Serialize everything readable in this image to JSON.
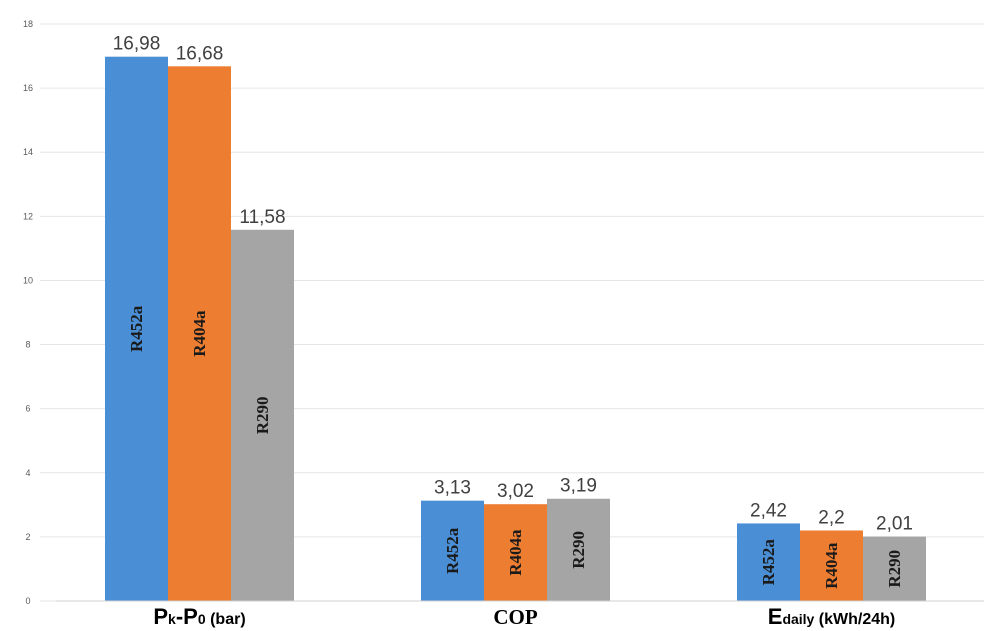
{
  "chart_data": {
    "type": "bar",
    "categories": [
      {
        "main": "P",
        "sub1": "k",
        "dash": "-P",
        "sub2": "0",
        "unit": " (bar)"
      },
      {
        "main": "COP"
      },
      {
        "main": "E",
        "sub1": "daily",
        "unit": " (kWh/24h)"
      }
    ],
    "series": [
      {
        "name": "R452a",
        "color": "#4a8fd6",
        "values": [
          16.98,
          3.13,
          2.42
        ],
        "labels": [
          "16,98",
          "3,13",
          "2,42"
        ]
      },
      {
        "name": "R404a",
        "color": "#ed7d31",
        "values": [
          16.68,
          3.02,
          2.2
        ],
        "labels": [
          "16,68",
          "3,02",
          "2,2"
        ]
      },
      {
        "name": "R290",
        "color": "#a5a5a5",
        "values": [
          11.58,
          3.19,
          2.01
        ],
        "labels": [
          "11,58",
          "3,19",
          "2,01"
        ]
      }
    ],
    "ylim": [
      0,
      18
    ],
    "yticks": [
      0,
      2,
      4,
      6,
      8,
      10,
      12,
      14,
      16,
      18
    ],
    "grid": true,
    "title": "",
    "xlabel": "",
    "ylabel": ""
  }
}
